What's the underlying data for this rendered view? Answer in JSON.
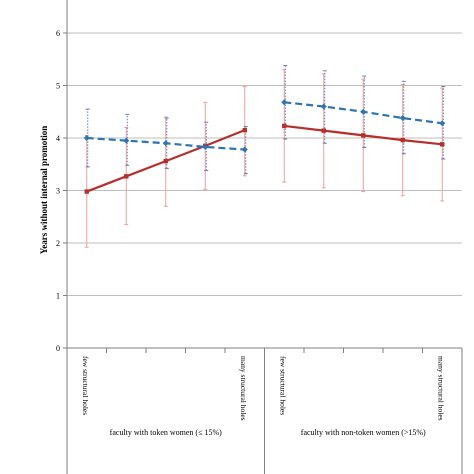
{
  "chart_data": {
    "type": "line",
    "ylabel": "Years without internal promotion",
    "ylim": [
      0,
      6
    ],
    "yticks": [
      0,
      1,
      2,
      3,
      4,
      5,
      6
    ],
    "grid": true,
    "categories": [
      "few structural holes",
      "",
      "",
      "",
      "many structural holes",
      "few structural holes",
      "",
      "",
      "",
      "many structural holes"
    ],
    "groups": [
      {
        "label": "faculty with token women (≤ 15%)",
        "start": 0,
        "end": 4
      },
      {
        "label": "faculty with non-token women (>15%)",
        "start": 5,
        "end": 9
      }
    ],
    "series": [
      {
        "style": "solid",
        "color": "#b5302d",
        "marker": "square",
        "error_color": "#e8a0a0",
        "segments": [
          {
            "x": [
              0,
              1,
              2,
              3,
              4
            ],
            "y": [
              2.98,
              3.27,
              3.56,
              3.85,
              4.15
            ],
            "err_low": [
              1.92,
              2.35,
              2.7,
              3.02,
              3.28
            ],
            "err_high": [
              4.05,
              4.2,
              4.4,
              4.68,
              4.98
            ]
          },
          {
            "x": [
              5,
              6,
              7,
              8,
              9
            ],
            "y": [
              4.23,
              4.14,
              4.05,
              3.96,
              3.88
            ],
            "err_low": [
              3.16,
              3.05,
              2.98,
              2.9,
              2.8
            ],
            "err_high": [
              5.3,
              5.22,
              5.12,
              5.02,
              4.95
            ]
          }
        ]
      },
      {
        "style": "dashed",
        "color": "#2e74b5",
        "marker": "diamond",
        "error_color": "#6a7fa8",
        "segments": [
          {
            "x": [
              0,
              1,
              2,
              3,
              4
            ],
            "y": [
              4.0,
              3.95,
              3.9,
              3.83,
              3.78
            ],
            "err_low": [
              3.45,
              3.48,
              3.42,
              3.38,
              3.32
            ],
            "err_high": [
              4.55,
              4.45,
              4.38,
              4.3,
              4.22
            ]
          },
          {
            "x": [
              5,
              6,
              7,
              8,
              9
            ],
            "y": [
              4.68,
              4.6,
              4.5,
              4.38,
              4.28
            ],
            "err_low": [
              3.98,
              3.9,
              3.82,
              3.7,
              3.6
            ],
            "err_high": [
              5.38,
              5.28,
              5.18,
              5.08,
              4.98
            ]
          }
        ]
      }
    ]
  }
}
